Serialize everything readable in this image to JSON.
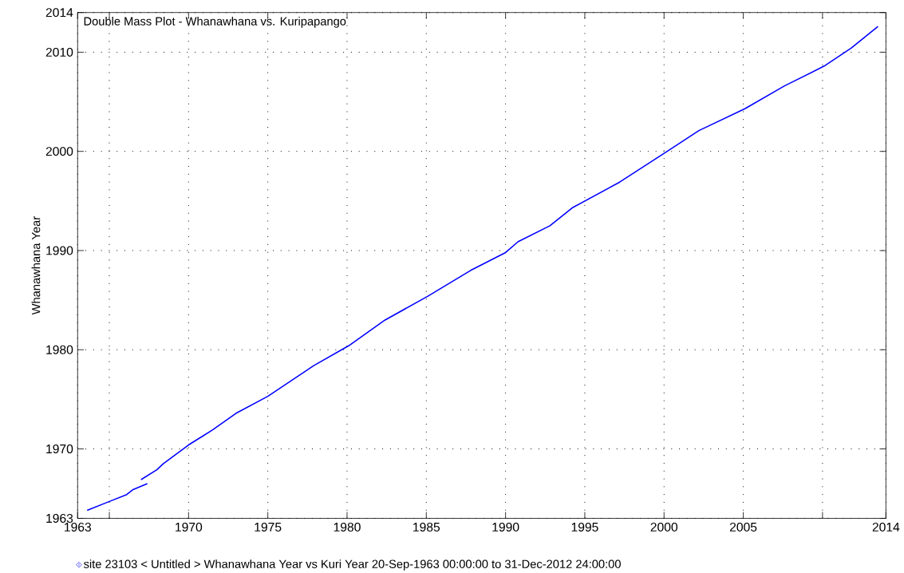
{
  "chart_data": {
    "type": "line",
    "title": "Double Mass Plot - Whanawhana vs. Kuripapango",
    "ylabel": "Whanawhana Year",
    "x": [
      1963.6,
      1965.0,
      1966.1,
      1966.5,
      1967.4,
      1967.2,
      1967.0,
      1968.0,
      1968.4,
      1970.0,
      1971.5,
      1973.0,
      1975.0,
      1977.9,
      1980.1,
      1982.4,
      1985.1,
      1987.8,
      1990.0,
      1990.8,
      1992.8,
      1994.2,
      1997.2,
      2000.2,
      2002.2,
      2005.1,
      2007.6,
      2010.1,
      2011.8,
      2013.5
    ],
    "series": [
      {
        "name": "site 23103 < Untitled >  Whanawhana Year vs Kuri Year 20-Sep-1963 00:00:00 to 31-Dec-2012 24:00:00",
        "color": "#0000ff",
        "values": [
          1963.8,
          1964.7,
          1965.4,
          1965.9,
          1966.5,
          null,
          1966.9,
          1967.9,
          1968.5,
          1970.4,
          1971.9,
          1973.6,
          1975.3,
          1978.4,
          1980.4,
          1983.0,
          1985.4,
          1988.0,
          1989.8,
          1990.9,
          1992.5,
          1994.3,
          1996.9,
          2000.0,
          2002.1,
          2004.3,
          2006.6,
          2008.6,
          2010.4,
          2012.6
        ]
      }
    ],
    "xlim": [
      1963,
      2014
    ],
    "ylim": [
      1963,
      2014
    ],
    "xticks": [
      1963,
      {
        "value": 1965,
        "label": null
      },
      1970,
      1975,
      1980,
      1985,
      1990,
      1995,
      2000,
      2005,
      {
        "value": 2010,
        "label": null
      },
      2014
    ],
    "yticks": [
      1963,
      1970,
      1980,
      1990,
      2000,
      2010,
      2014
    ],
    "grid": true,
    "legend": "bottom"
  }
}
